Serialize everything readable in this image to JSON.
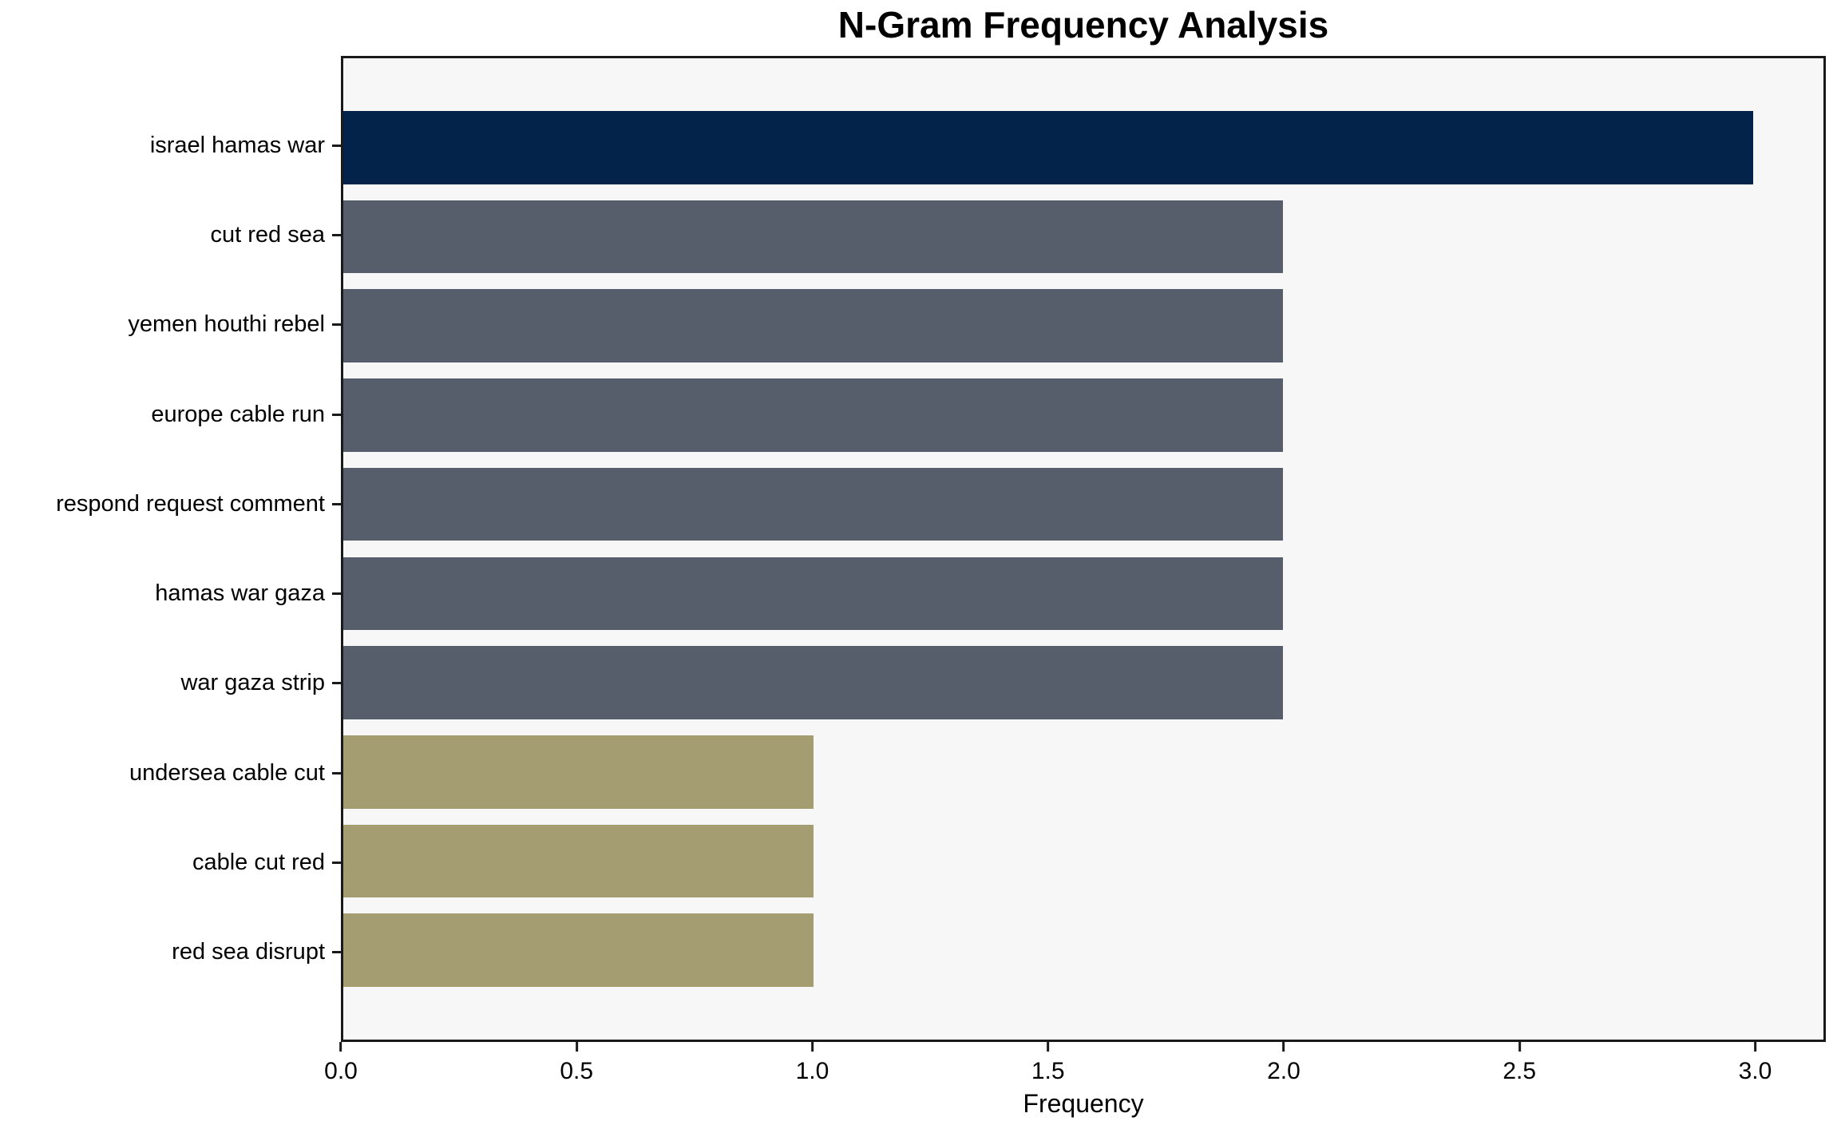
{
  "chart_data": {
    "type": "bar",
    "orientation": "horizontal",
    "title": "N-Gram Frequency Analysis",
    "xlabel": "Frequency",
    "ylabel": "",
    "categories": [
      "israel hamas war",
      "cut red sea",
      "yemen houthi rebel",
      "europe cable run",
      "respond request comment",
      "hamas war gaza",
      "war gaza strip",
      "undersea cable cut",
      "cable cut red",
      "red sea disrupt"
    ],
    "values": [
      3,
      2,
      2,
      2,
      2,
      2,
      2,
      1,
      1,
      1
    ],
    "bar_colors": [
      "#03234b",
      "#565d6b",
      "#565d6b",
      "#565d6b",
      "#565d6b",
      "#565d6b",
      "#565d6b",
      "#a49d71",
      "#a49d71",
      "#a49d71"
    ],
    "xlim": [
      0,
      3.15
    ],
    "xticks": [
      {
        "value": 0,
        "label": "0.0"
      },
      {
        "value": 0.5,
        "label": "0.5"
      },
      {
        "value": 1,
        "label": "1.0"
      },
      {
        "value": 1.5,
        "label": "1.5"
      },
      {
        "value": 2,
        "label": "2.0"
      },
      {
        "value": 2.5,
        "label": "2.5"
      },
      {
        "value": 3,
        "label": "3.0"
      }
    ],
    "grid": false,
    "legend": null,
    "colors": {
      "highlight_bar": "#03234b",
      "mid_bar": "#565d6b",
      "low_bar": "#a49d71",
      "plot_background": "#f7f7f7",
      "figure_background": "#ffffff",
      "spine": "#1a1a1a",
      "text": "#000000"
    }
  }
}
